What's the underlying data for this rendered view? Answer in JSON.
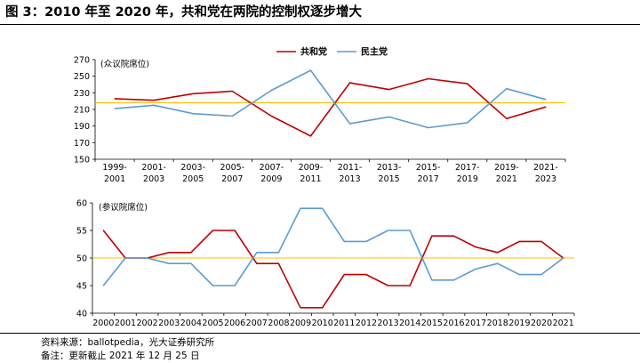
{
  "title": "图 3：2010 年至 2020 年，共和党在两院的控制权逐步增大",
  "footer": {
    "source": "资料来源：ballotpedia，光大证券研究所",
    "note": "备注：更新截止 2021 年 12 月 25 日"
  },
  "colors": {
    "rep": "#c00000",
    "dem": "#5b9bd5",
    "ref": "#ffc000",
    "axis": "#000000"
  },
  "legend": [
    {
      "name": "共和党",
      "color": "#c00000"
    },
    {
      "name": "民主党",
      "color": "#5b9bd5"
    }
  ],
  "chart_data": [
    {
      "type": "line",
      "ylabel": "(众议院席位)",
      "ylim": [
        150,
        270
      ],
      "yticks": [
        150,
        170,
        190,
        210,
        230,
        250,
        270
      ],
      "reference_line": 218,
      "categories": [
        [
          "1999-",
          "2001"
        ],
        [
          "2001-",
          "2003"
        ],
        [
          "2003-",
          "2005"
        ],
        [
          "2005-",
          "2007"
        ],
        [
          "2007-",
          "2009"
        ],
        [
          "2009-",
          "2011"
        ],
        [
          "2011-",
          "2013"
        ],
        [
          "2013-",
          "2015"
        ],
        [
          "2015-",
          "2017"
        ],
        [
          "2017-",
          "2019"
        ],
        [
          "2019-",
          "2021"
        ],
        [
          "2021-",
          "2023"
        ]
      ],
      "series": [
        {
          "name": "共和党",
          "values": [
            223,
            221,
            229,
            232,
            202,
            178,
            242,
            234,
            247,
            241,
            199,
            213
          ]
        },
        {
          "name": "民主党",
          "values": [
            211,
            215,
            205,
            202,
            233,
            257,
            193,
            201,
            188,
            194,
            235,
            222
          ]
        }
      ]
    },
    {
      "type": "line",
      "ylabel": "(参议院席位)",
      "ylim": [
        40,
        60
      ],
      "yticks": [
        40,
        45,
        50,
        55,
        60
      ],
      "reference_line": 50,
      "categories": [
        "2000",
        "2001",
        "2002",
        "2003",
        "2004",
        "2005",
        "2006",
        "2007",
        "2008",
        "2009",
        "2010",
        "2011",
        "2012",
        "2013",
        "2014",
        "2015",
        "2016",
        "2017",
        "2018",
        "2019",
        "2020",
        "2021"
      ],
      "series": [
        {
          "name": "共和党",
          "values": [
            55,
            50,
            50,
            51,
            51,
            55,
            55,
            49,
            49,
            41,
            41,
            47,
            47,
            45,
            45,
            54,
            54,
            52,
            51,
            53,
            53,
            50
          ]
        },
        {
          "name": "民主党",
          "values": [
            45,
            50,
            50,
            49,
            49,
            45,
            45,
            51,
            51,
            59,
            59,
            53,
            53,
            55,
            55,
            46,
            46,
            48,
            49,
            47,
            47,
            50
          ]
        }
      ]
    }
  ]
}
